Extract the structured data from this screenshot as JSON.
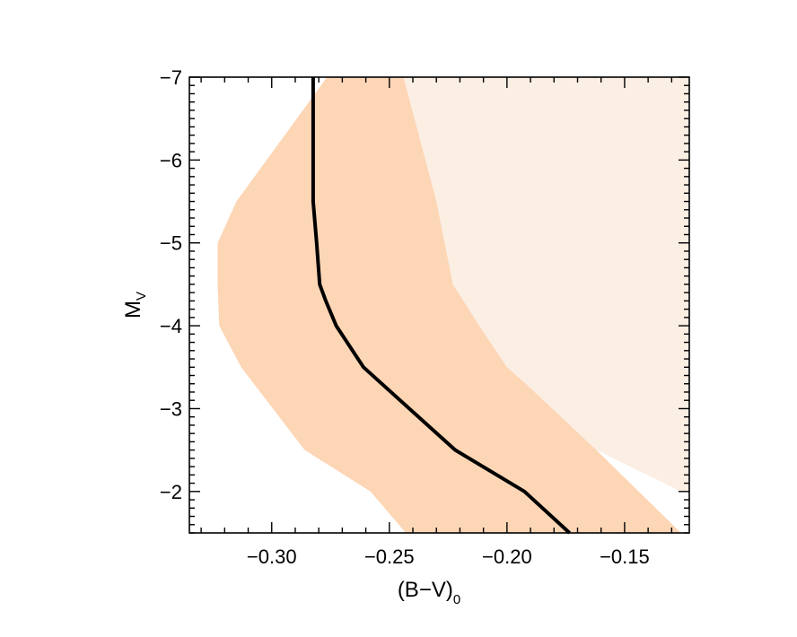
{
  "chart_data": {
    "type": "line",
    "title": "",
    "xlabel": {
      "main": "(B−V)",
      "sub": "0"
    },
    "ylabel": {
      "main": "M",
      "sub": "V"
    },
    "xlim": [
      -0.335,
      -0.1225
    ],
    "ylim": [
      -1.5,
      -7.0
    ],
    "y_inverted": true,
    "xticks": [
      -0.3,
      -0.25,
      -0.2,
      -0.15
    ],
    "xtick_labels": [
      "−0.30",
      "−0.25",
      "−0.20",
      "−0.15"
    ],
    "yticks": [
      -2,
      -3,
      -4,
      -5,
      -6,
      -7
    ],
    "ytick_labels": [
      "−2",
      "−3",
      "−4",
      "−5",
      "−6",
      "−7"
    ],
    "grid": false,
    "colors": {
      "band": "#fdd6b6",
      "region": "#fbeee3",
      "line": "#000000"
    },
    "series": [
      {
        "type": "line",
        "x": [
          -0.2824,
          -0.2824,
          -0.2809,
          -0.2796,
          -0.277,
          -0.2726,
          -0.261,
          -0.222,
          -0.1926,
          -0.1734
        ],
        "y": [
          -7.0,
          -5.5,
          -5.0,
          -4.5,
          -4.3,
          -4.0,
          -3.5,
          -2.5,
          -2.0,
          -1.5
        ]
      }
    ],
    "band": {
      "type": "area",
      "left": {
        "x": [
          -0.2765,
          -0.315,
          -0.323,
          -0.323,
          -0.3223,
          -0.313,
          -0.286,
          -0.258,
          -0.243
        ],
        "y": [
          -7.0,
          -5.5,
          -5.0,
          -4.5,
          -4.0,
          -3.5,
          -2.5,
          -2.0,
          -1.5
        ]
      },
      "right": {
        "x": [
          -0.244,
          -0.23,
          -0.223,
          -0.2118,
          -0.2,
          -0.192,
          -0.162,
          -0.126
        ],
        "y": [
          -7.0,
          -5.5,
          -4.5,
          -4.0,
          -3.5,
          -3.3,
          -2.5,
          -1.5
        ]
      }
    },
    "region": {
      "type": "area",
      "boundary": {
        "x": [
          -0.244,
          -0.23,
          -0.223,
          -0.2118,
          -0.2,
          -0.192,
          -0.162,
          -0.126
        ],
        "y": [
          -7.0,
          -5.5,
          -4.5,
          -4.0,
          -3.5,
          -3.3,
          -2.5,
          -2.0
        ]
      }
    }
  }
}
